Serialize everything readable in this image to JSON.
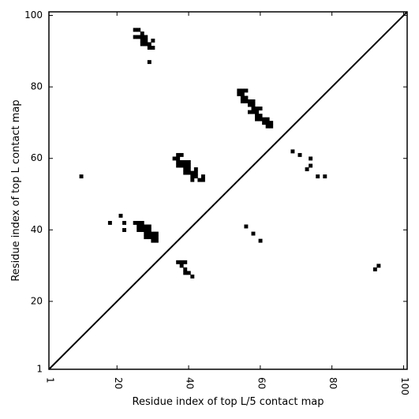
{
  "chart_data": {
    "type": "heatmap",
    "title": "",
    "xlabel": "Residue index of top L/5 contact map",
    "ylabel": "Residue index of top L contact map",
    "xlim": [
      1,
      101
    ],
    "ylim": [
      1,
      101
    ],
    "xticks": [
      {
        "value": 1,
        "label": "1"
      },
      {
        "value": 20,
        "label": "20"
      },
      {
        "value": 40,
        "label": "40"
      },
      {
        "value": 60,
        "label": "60"
      },
      {
        "value": 80,
        "label": "80"
      },
      {
        "value": 100,
        "label": "100"
      }
    ],
    "yticks": [
      {
        "value": 1,
        "label": "1"
      },
      {
        "value": 20,
        "label": "20"
      },
      {
        "value": 40,
        "label": "40"
      },
      {
        "value": 60,
        "label": "60"
      },
      {
        "value": 80,
        "label": "80"
      },
      {
        "value": 100,
        "label": "100"
      }
    ],
    "diagonal": true,
    "grid": false,
    "contact_color": "#000000",
    "contacts": [
      [
        25,
        96
      ],
      [
        26,
        96
      ],
      [
        27,
        95
      ],
      [
        25,
        94
      ],
      [
        26,
        94
      ],
      [
        27,
        94
      ],
      [
        28,
        94
      ],
      [
        27,
        93
      ],
      [
        28,
        93
      ],
      [
        30,
        93
      ],
      [
        27,
        92
      ],
      [
        28,
        92
      ],
      [
        29,
        92
      ],
      [
        29,
        91
      ],
      [
        30,
        91
      ],
      [
        29,
        87
      ],
      [
        54,
        79
      ],
      [
        55,
        79
      ],
      [
        56,
        79
      ],
      [
        54,
        78
      ],
      [
        55,
        78
      ],
      [
        55,
        77
      ],
      [
        56,
        77
      ],
      [
        55,
        76
      ],
      [
        56,
        76
      ],
      [
        57,
        76
      ],
      [
        58,
        76
      ],
      [
        57,
        75
      ],
      [
        58,
        75
      ],
      [
        58,
        74
      ],
      [
        59,
        74
      ],
      [
        60,
        74
      ],
      [
        57,
        73
      ],
      [
        58,
        73
      ],
      [
        59,
        73
      ],
      [
        59,
        72
      ],
      [
        60,
        72
      ],
      [
        59,
        71
      ],
      [
        60,
        71
      ],
      [
        61,
        71
      ],
      [
        62,
        71
      ],
      [
        61,
        70
      ],
      [
        62,
        70
      ],
      [
        63,
        70
      ],
      [
        62,
        69
      ],
      [
        63,
        69
      ],
      [
        37,
        61
      ],
      [
        38,
        61
      ],
      [
        36,
        60
      ],
      [
        37,
        60
      ],
      [
        37,
        59
      ],
      [
        38,
        59
      ],
      [
        39,
        59
      ],
      [
        40,
        59
      ],
      [
        37,
        58
      ],
      [
        38,
        58
      ],
      [
        39,
        58
      ],
      [
        40,
        58
      ],
      [
        39,
        57
      ],
      [
        40,
        57
      ],
      [
        42,
        57
      ],
      [
        39,
        56
      ],
      [
        40,
        56
      ],
      [
        41,
        56
      ],
      [
        42,
        56
      ],
      [
        41,
        55
      ],
      [
        42,
        55
      ],
      [
        44,
        55
      ],
      [
        41,
        54
      ],
      [
        43,
        54
      ],
      [
        44,
        54
      ],
      [
        10,
        55
      ],
      [
        69,
        62
      ],
      [
        71,
        61
      ],
      [
        74,
        60
      ],
      [
        74,
        58
      ],
      [
        73,
        57
      ],
      [
        76,
        55
      ],
      [
        78,
        55
      ],
      [
        21,
        44
      ],
      [
        18,
        42
      ],
      [
        22,
        42
      ],
      [
        25,
        42
      ],
      [
        26,
        42
      ],
      [
        27,
        42
      ],
      [
        26,
        41
      ],
      [
        27,
        41
      ],
      [
        28,
        41
      ],
      [
        29,
        41
      ],
      [
        26,
        40
      ],
      [
        27,
        40
      ],
      [
        28,
        40
      ],
      [
        29,
        40
      ],
      [
        22,
        40
      ],
      [
        28,
        39
      ],
      [
        29,
        39
      ],
      [
        30,
        39
      ],
      [
        31,
        39
      ],
      [
        28,
        38
      ],
      [
        29,
        38
      ],
      [
        30,
        38
      ],
      [
        31,
        38
      ],
      [
        30,
        37
      ],
      [
        31,
        37
      ],
      [
        56,
        41
      ],
      [
        58,
        39
      ],
      [
        60,
        37
      ],
      [
        37,
        31
      ],
      [
        38,
        31
      ],
      [
        39,
        31
      ],
      [
        38,
        30
      ],
      [
        39,
        29
      ],
      [
        39,
        28
      ],
      [
        40,
        28
      ],
      [
        41,
        27
      ],
      [
        93,
        30
      ],
      [
        92,
        29
      ]
    ]
  }
}
